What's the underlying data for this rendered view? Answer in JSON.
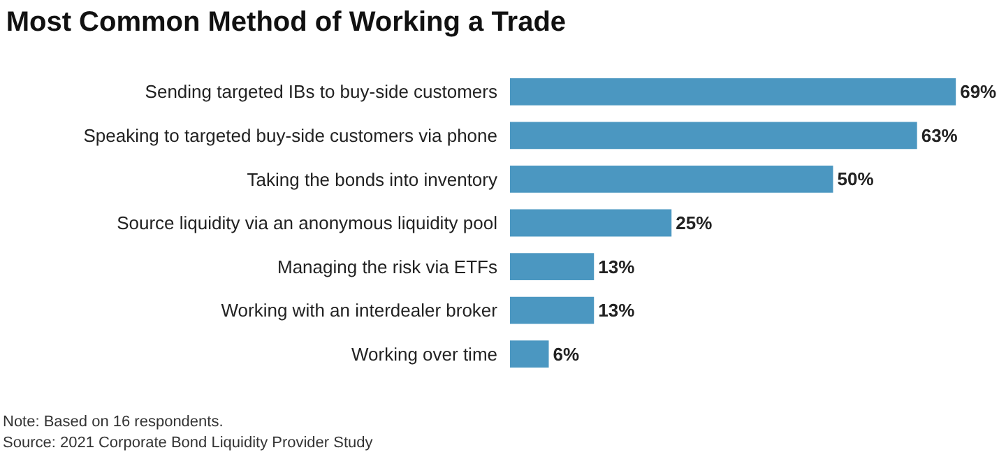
{
  "chart_data": {
    "type": "bar",
    "orientation": "horizontal",
    "title": "Most Common Method of Working a Trade",
    "categories": [
      "Sending targeted IBs to buy-side customers",
      "Speaking to targeted buy-side customers via phone",
      "Taking the bonds into inventory",
      "Source liquidity via an anonymous liquidity pool",
      "Managing the risk via ETFs",
      "Working with an interdealer broker",
      "Working over time"
    ],
    "values": [
      69,
      63,
      50,
      25,
      13,
      13,
      6
    ],
    "value_labels": [
      "69%",
      "63%",
      "50%",
      "25%",
      "13%",
      "13%",
      "6%"
    ],
    "color": "#4b97c1",
    "annotations": [
      "Note: Based on 16 respondents.",
      "Source: 2021 Corporate Bond Liquidity Provider Study"
    ]
  }
}
